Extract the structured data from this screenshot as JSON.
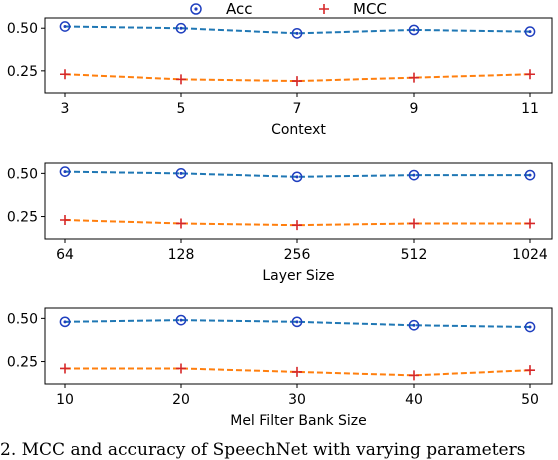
{
  "legend": [
    {
      "label": "Acc",
      "color": "#1f3fbf",
      "marker": "circle-dot"
    },
    {
      "label": "MCC",
      "color": "#d62728",
      "marker": "plus"
    }
  ],
  "chart_data": [
    {
      "type": "line",
      "xlabel": "Context",
      "categories": [
        "3",
        "5",
        "7",
        "9",
        "11"
      ],
      "yticks": [
        "0.25",
        "0.50"
      ],
      "ylim": [
        0.12,
        0.56
      ],
      "series": [
        {
          "name": "Acc",
          "values": [
            0.51,
            0.5,
            0.47,
            0.49,
            0.48
          ],
          "line_color": "#1f77b4"
        },
        {
          "name": "MCC",
          "values": [
            0.23,
            0.2,
            0.19,
            0.21,
            0.23
          ],
          "line_color": "#ff7f0e"
        }
      ]
    },
    {
      "type": "line",
      "xlabel": "Layer Size",
      "categories": [
        "64",
        "128",
        "256",
        "512",
        "1024"
      ],
      "yticks": [
        "0.25",
        "0.50"
      ],
      "ylim": [
        0.12,
        0.56
      ],
      "series": [
        {
          "name": "Acc",
          "values": [
            0.51,
            0.5,
            0.48,
            0.49,
            0.49
          ],
          "line_color": "#1f77b4"
        },
        {
          "name": "MCC",
          "values": [
            0.23,
            0.21,
            0.2,
            0.21,
            0.21
          ],
          "line_color": "#ff7f0e"
        }
      ]
    },
    {
      "type": "line",
      "xlabel": "Mel Filter Bank Size",
      "categories": [
        "10",
        "20",
        "30",
        "40",
        "50"
      ],
      "yticks": [
        "0.25",
        "0.50"
      ],
      "ylim": [
        0.12,
        0.56
      ],
      "series": [
        {
          "name": "Acc",
          "values": [
            0.48,
            0.49,
            0.48,
            0.46,
            0.45
          ],
          "line_color": "#1f77b4"
        },
        {
          "name": "MCC",
          "values": [
            0.21,
            0.21,
            0.19,
            0.17,
            0.2
          ],
          "line_color": "#ff7f0e"
        }
      ]
    }
  ],
  "caption_fragment": "2. MCC and accuracy of SpeechNet with varying parameters"
}
